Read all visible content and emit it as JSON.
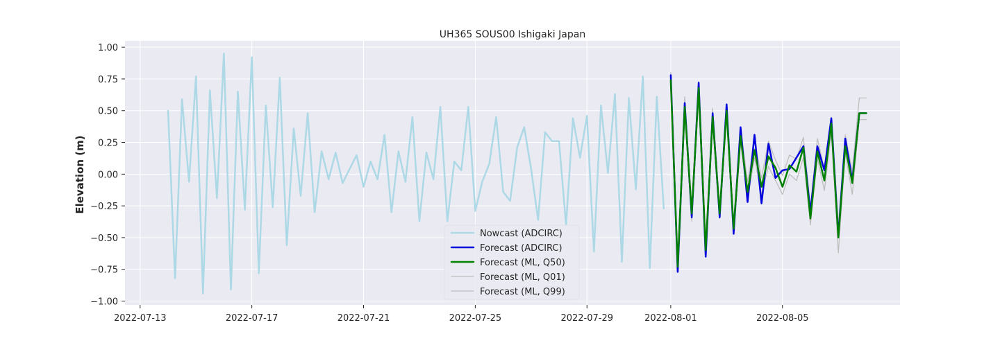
{
  "chart_data": {
    "type": "line",
    "title": "UH365 SOUS00 Ishigaki Japan",
    "xlabel": "",
    "ylabel": "Elevation (m)",
    "xlim": [
      "2022-07-12T11:00",
      "2022-08-09T05:00"
    ],
    "ylim": [
      -1.03,
      1.05
    ],
    "x_ticks": [
      "2022-07-13",
      "2022-07-17",
      "2022-07-21",
      "2022-07-25",
      "2022-07-29",
      "2022-08-01",
      "2022-08-05"
    ],
    "y_ticks": [
      "1.00",
      "0.75",
      "0.50",
      "0.25",
      "0.00",
      "−0.25",
      "−0.50",
      "−0.75",
      "−1.00"
    ],
    "y_tick_values": [
      1.0,
      0.75,
      0.5,
      0.25,
      0.0,
      -0.25,
      -0.5,
      -0.75,
      -1.0
    ],
    "grid": true,
    "legend_position": "lower-center",
    "colors": {
      "plot_bg": "#eaeaf2",
      "grid": "#ffffff"
    },
    "series": [
      {
        "name": "Nowcast (ADCIRC)",
        "color": "#add8e6",
        "width": 2.5,
        "x": [
          "2022-07-14T00:00",
          "2022-07-14T06:00",
          "2022-07-14T12:00",
          "2022-07-14T18:00",
          "2022-07-15T00:00",
          "2022-07-15T06:00",
          "2022-07-15T12:00",
          "2022-07-15T18:00",
          "2022-07-16T00:00",
          "2022-07-16T06:00",
          "2022-07-16T12:00",
          "2022-07-16T18:00",
          "2022-07-17T00:00",
          "2022-07-17T06:00",
          "2022-07-17T12:00",
          "2022-07-17T18:00",
          "2022-07-18T00:00",
          "2022-07-18T06:00",
          "2022-07-18T12:00",
          "2022-07-18T18:00",
          "2022-07-19T00:00",
          "2022-07-19T06:00",
          "2022-07-19T12:00",
          "2022-07-19T18:00",
          "2022-07-20T00:00",
          "2022-07-20T06:00",
          "2022-07-20T12:00",
          "2022-07-20T18:00",
          "2022-07-21T00:00",
          "2022-07-21T06:00",
          "2022-07-21T12:00",
          "2022-07-21T18:00",
          "2022-07-22T00:00",
          "2022-07-22T06:00",
          "2022-07-22T12:00",
          "2022-07-22T18:00",
          "2022-07-23T00:00",
          "2022-07-23T06:00",
          "2022-07-23T12:00",
          "2022-07-23T18:00",
          "2022-07-24T00:00",
          "2022-07-24T06:00",
          "2022-07-24T12:00",
          "2022-07-24T18:00",
          "2022-07-25T00:00",
          "2022-07-25T06:00",
          "2022-07-25T12:00",
          "2022-07-25T18:00",
          "2022-07-26T00:00",
          "2022-07-26T06:00",
          "2022-07-26T12:00",
          "2022-07-26T18:00",
          "2022-07-27T00:00",
          "2022-07-27T06:00",
          "2022-07-27T12:00",
          "2022-07-27T18:00",
          "2022-07-28T00:00",
          "2022-07-28T06:00",
          "2022-07-28T12:00",
          "2022-07-28T18:00",
          "2022-07-29T00:00",
          "2022-07-29T06:00",
          "2022-07-29T12:00",
          "2022-07-29T18:00",
          "2022-07-30T00:00",
          "2022-07-30T06:00",
          "2022-07-30T12:00",
          "2022-07-30T18:00",
          "2022-07-31T00:00",
          "2022-07-31T06:00",
          "2022-07-31T12:00",
          "2022-07-31T18:00"
        ],
        "y": [
          0.5,
          -0.82,
          0.59,
          -0.06,
          0.77,
          -0.94,
          0.66,
          -0.19,
          0.95,
          -0.91,
          0.65,
          -0.28,
          0.92,
          -0.78,
          0.54,
          -0.26,
          0.76,
          -0.56,
          0.36,
          -0.17,
          0.48,
          -0.3,
          0.18,
          -0.04,
          0.17,
          -0.07,
          0.04,
          0.15,
          -0.1,
          0.1,
          -0.04,
          0.31,
          -0.3,
          0.18,
          -0.06,
          0.45,
          -0.37,
          0.17,
          -0.04,
          0.53,
          -0.37,
          0.1,
          0.03,
          0.53,
          -0.29,
          -0.06,
          0.08,
          0.45,
          -0.14,
          -0.21,
          0.21,
          0.37,
          0.04,
          -0.36,
          0.33,
          0.26,
          0.26,
          -0.4,
          0.44,
          0.13,
          0.46,
          -0.61,
          0.54,
          0.01,
          0.63,
          -0.69,
          0.6,
          -0.12,
          0.77,
          -0.74,
          0.61,
          -0.27
        ]
      },
      {
        "name": "Forecast (ADCIRC)",
        "color": "#0000dd",
        "width": 2.5,
        "x": [
          "2022-08-01T00:00",
          "2022-08-01T06:00",
          "2022-08-01T12:00",
          "2022-08-01T18:00",
          "2022-08-02T00:00",
          "2022-08-02T06:00",
          "2022-08-02T12:00",
          "2022-08-02T18:00",
          "2022-08-03T00:00",
          "2022-08-03T06:00",
          "2022-08-03T12:00",
          "2022-08-03T18:00",
          "2022-08-04T00:00",
          "2022-08-04T06:00",
          "2022-08-04T12:00",
          "2022-08-04T18:00",
          "2022-08-05T00:00",
          "2022-08-05T06:00",
          "2022-08-05T12:00",
          "2022-08-05T18:00",
          "2022-08-06T00:00",
          "2022-08-06T06:00",
          "2022-08-06T12:00",
          "2022-08-06T18:00",
          "2022-08-07T00:00",
          "2022-08-07T06:00",
          "2022-08-07T12:00",
          "2022-08-07T18:00",
          "2022-08-08T00:00"
        ],
        "y": [
          0.78,
          -0.77,
          0.56,
          -0.34,
          0.72,
          -0.65,
          0.48,
          -0.34,
          0.55,
          -0.47,
          0.37,
          -0.22,
          0.31,
          -0.23,
          0.24,
          -0.03,
          0.03,
          0.04,
          0.13,
          0.22,
          -0.3,
          0.22,
          0.03,
          0.44,
          -0.49,
          0.28,
          -0.05,
          0.48,
          0.48
        ]
      },
      {
        "name": "Forecast (ML, Q50)",
        "color": "#008000",
        "width": 2.5,
        "x": [
          "2022-08-01T00:00",
          "2022-08-01T06:00",
          "2022-08-01T12:00",
          "2022-08-01T18:00",
          "2022-08-02T00:00",
          "2022-08-02T06:00",
          "2022-08-02T12:00",
          "2022-08-02T18:00",
          "2022-08-03T00:00",
          "2022-08-03T06:00",
          "2022-08-03T12:00",
          "2022-08-03T18:00",
          "2022-08-04T00:00",
          "2022-08-04T06:00",
          "2022-08-04T12:00",
          "2022-08-04T18:00",
          "2022-08-05T00:00",
          "2022-08-05T06:00",
          "2022-08-05T12:00",
          "2022-08-05T18:00",
          "2022-08-06T00:00",
          "2022-08-06T06:00",
          "2022-08-06T12:00",
          "2022-08-06T18:00",
          "2022-08-07T00:00",
          "2022-08-07T06:00",
          "2022-08-07T12:00",
          "2022-08-07T18:00",
          "2022-08-08T00:00"
        ],
        "y": [
          0.74,
          -0.73,
          0.53,
          -0.31,
          0.68,
          -0.6,
          0.45,
          -0.31,
          0.5,
          -0.43,
          0.3,
          -0.14,
          0.19,
          -0.1,
          0.14,
          0.05,
          -0.1,
          0.07,
          0.02,
          0.21,
          -0.35,
          0.18,
          -0.05,
          0.4,
          -0.5,
          0.22,
          -0.07,
          0.48,
          0.48
        ]
      },
      {
        "name": "Forecast (ML, Q01)",
        "color": "#bebebe",
        "width": 1.3,
        "x": [
          "2022-08-01T00:00",
          "2022-08-01T06:00",
          "2022-08-01T12:00",
          "2022-08-01T18:00",
          "2022-08-02T00:00",
          "2022-08-02T06:00",
          "2022-08-02T12:00",
          "2022-08-02T18:00",
          "2022-08-03T00:00",
          "2022-08-03T06:00",
          "2022-08-03T12:00",
          "2022-08-03T18:00",
          "2022-08-04T00:00",
          "2022-08-04T06:00",
          "2022-08-04T12:00",
          "2022-08-04T18:00",
          "2022-08-05T00:00",
          "2022-08-05T06:00",
          "2022-08-05T12:00",
          "2022-08-05T18:00",
          "2022-08-06T00:00",
          "2022-08-06T06:00",
          "2022-08-06T12:00",
          "2022-08-06T18:00",
          "2022-08-07T00:00",
          "2022-08-07T06:00",
          "2022-08-07T12:00",
          "2022-08-07T18:00",
          "2022-08-08T00:00"
        ],
        "y": [
          0.7,
          -0.76,
          0.49,
          -0.37,
          0.62,
          -0.63,
          0.41,
          -0.35,
          0.46,
          -0.47,
          0.25,
          -0.2,
          0.13,
          -0.16,
          0.06,
          -0.05,
          -0.16,
          0.0,
          -0.05,
          0.13,
          -0.4,
          0.13,
          -0.13,
          0.33,
          -0.62,
          0.17,
          -0.16,
          0.43,
          0.43
        ]
      },
      {
        "name": "Forecast (ML, Q99)",
        "color": "#bebebe",
        "width": 1.3,
        "x": [
          "2022-08-01T00:00",
          "2022-08-01T06:00",
          "2022-08-01T12:00",
          "2022-08-01T18:00",
          "2022-08-02T00:00",
          "2022-08-02T06:00",
          "2022-08-02T12:00",
          "2022-08-02T18:00",
          "2022-08-03T00:00",
          "2022-08-03T06:00",
          "2022-08-03T12:00",
          "2022-08-03T18:00",
          "2022-08-04T00:00",
          "2022-08-04T06:00",
          "2022-08-04T12:00",
          "2022-08-04T18:00",
          "2022-08-05T00:00",
          "2022-08-05T06:00",
          "2022-08-05T12:00",
          "2022-08-05T18:00",
          "2022-08-06T00:00",
          "2022-08-06T06:00",
          "2022-08-06T12:00",
          "2022-08-06T18:00",
          "2022-08-07T00:00",
          "2022-08-07T06:00",
          "2022-08-07T12:00",
          "2022-08-07T18:00",
          "2022-08-08T00:00"
        ],
        "y": [
          0.8,
          -0.69,
          0.61,
          -0.26,
          0.73,
          -0.55,
          0.52,
          -0.25,
          0.55,
          -0.37,
          0.36,
          -0.06,
          0.26,
          -0.03,
          0.26,
          0.11,
          -0.01,
          0.15,
          0.12,
          0.29,
          -0.26,
          0.28,
          0.04,
          0.45,
          -0.4,
          0.31,
          0.02,
          0.6,
          0.6
        ]
      }
    ]
  }
}
